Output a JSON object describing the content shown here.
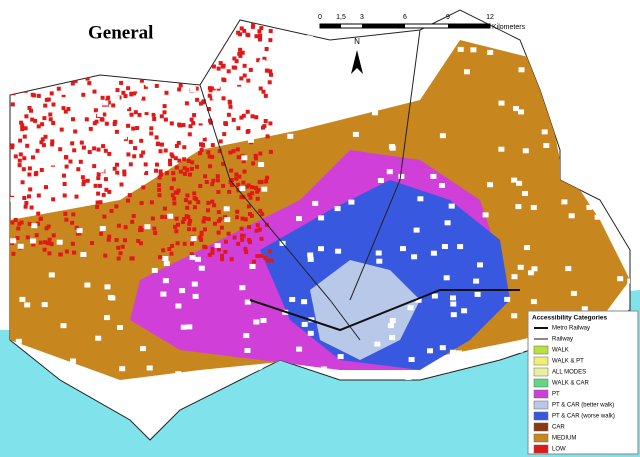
{
  "title": "General",
  "scale": {
    "labels": [
      "0",
      "1,5",
      "3",
      "6",
      "9",
      "12"
    ],
    "unit": "Kilometers"
  },
  "north": "N",
  "legend": {
    "title": "Accessibility Categories",
    "lines": [
      {
        "label": "Metro Railway"
      },
      {
        "label": "Railway"
      }
    ],
    "items": [
      {
        "label": "WALK",
        "color": "#b8e040"
      },
      {
        "label": "WALK & PT",
        "color": "#f0f070"
      },
      {
        "label": "ALL MODES",
        "color": "#e8f0a0"
      },
      {
        "label": "WALK & CAR",
        "color": "#60d880"
      },
      {
        "label": "PT",
        "color": "#d040d8"
      },
      {
        "label": "PT & CAR (better walk)",
        "color": "#b8c8e8"
      },
      {
        "label": "PT & CAR (worse walk)",
        "color": "#3858e0"
      },
      {
        "label": "CAR",
        "color": "#8a3a10"
      },
      {
        "label": "MEDIUM",
        "color": "#c8861e"
      },
      {
        "label": "LOW",
        "color": "#e01818"
      }
    ]
  }
}
